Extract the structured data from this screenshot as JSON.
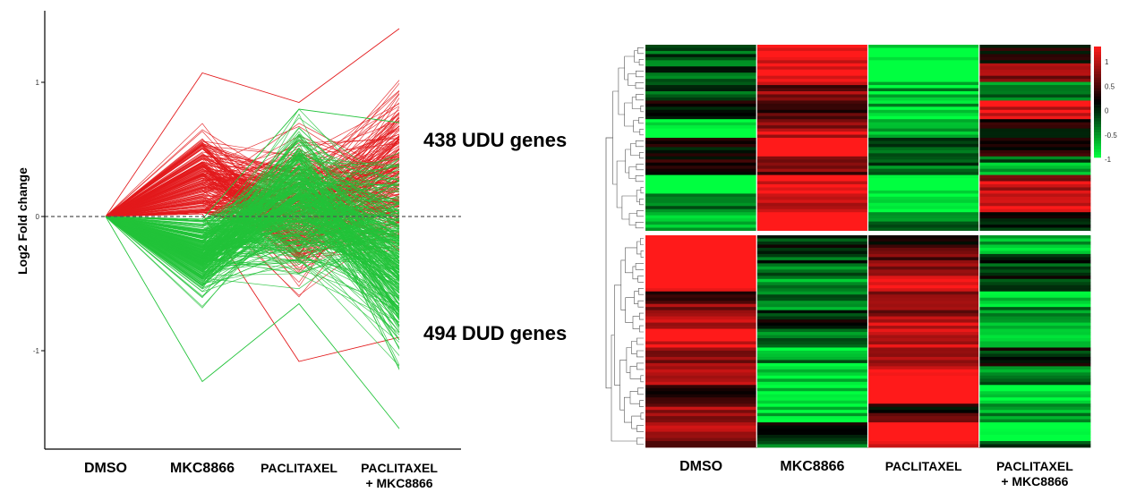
{
  "chart_data": [
    {
      "type": "line",
      "ylabel": "Log2 Fold change",
      "categories": [
        "DMSO",
        "MKC8866",
        "PACLITAXEL",
        "PACLITAXEL\n+ MKC8866"
      ],
      "yticks": [
        1,
        0,
        -1
      ],
      "ylim": [
        -1.7,
        1.45
      ],
      "reference_line_y": 0,
      "annotations": [
        "438 UDU genes",
        "494 DUD genes"
      ],
      "series": [
        {
          "group": "UDU",
          "gene_count": 438,
          "color": "#e31a1c",
          "envelope_max": [
            0,
            1.07,
            0.85,
            1.4
          ],
          "envelope_min": [
            0,
            0.02,
            -1.08,
            -0.9
          ]
        },
        {
          "group": "DUD",
          "gene_count": 494,
          "color": "#22c33a",
          "envelope_max": [
            0,
            -0.02,
            0.8,
            0.7
          ],
          "envelope_min": [
            0,
            -1.23,
            -0.65,
            -1.58
          ]
        }
      ]
    },
    {
      "type": "heatmap",
      "columns": [
        "DMSO",
        "MKC8866",
        "PACLITAXEL",
        "PACLITAXEL\n+ MKC8866"
      ],
      "color_scale": {
        "low": "#00ff40",
        "mid": "#000000",
        "high": "#ff1a1a"
      },
      "color_scale_ticks": [
        "1",
        "0.5",
        "0",
        "-0.5",
        "-1"
      ],
      "clusters": [
        {
          "group": "UDU",
          "pattern": [
            -0.6,
            1.0,
            -0.95,
            0.2
          ]
        },
        {
          "group": "DUD",
          "pattern": [
            0.7,
            -0.7,
            0.75,
            -0.6
          ]
        }
      ]
    }
  ]
}
